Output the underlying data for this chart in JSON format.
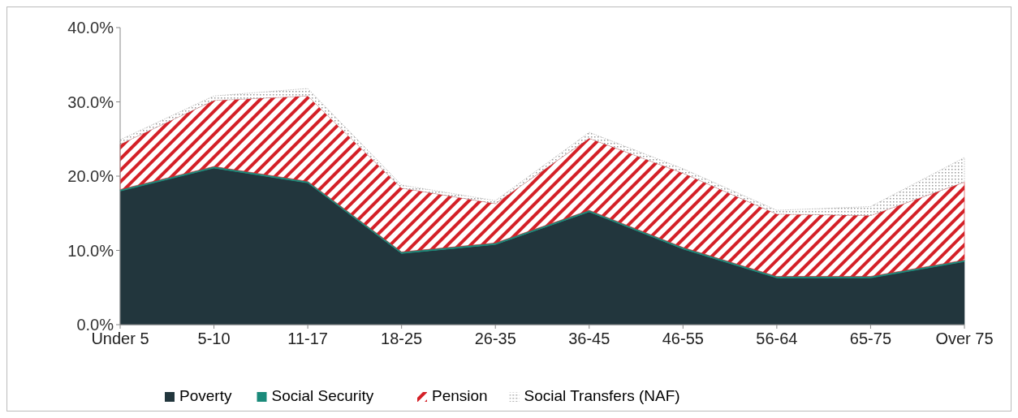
{
  "chart_data": {
    "type": "area",
    "stacked": true,
    "categories": [
      "Under 5",
      "5-10",
      "11-17",
      "18-25",
      "26-35",
      "36-45",
      "46-55",
      "56-64",
      "65-75",
      "Over 75"
    ],
    "series": [
      {
        "name": "Poverty",
        "color": "#22363d",
        "values": [
          18.0,
          21.1,
          19.1,
          9.6,
          10.8,
          15.2,
          10.2,
          6.3,
          6.3,
          8.5
        ]
      },
      {
        "name": "Social Security",
        "color": "#1a8a7a",
        "values": [
          0.2,
          0.2,
          0.2,
          0.2,
          0.2,
          0.2,
          0.2,
          0.2,
          0.2,
          0.2
        ]
      },
      {
        "name": "Pension",
        "color": "#d42027",
        "values": [
          6.1,
          8.9,
          11.5,
          8.6,
          5.3,
          9.7,
          10.0,
          8.4,
          8.2,
          10.5
        ]
      },
      {
        "name": "Social Transfers (NAF)",
        "color": "#9a9a9a",
        "values": [
          0.6,
          0.6,
          1.0,
          0.4,
          0.4,
          0.8,
          0.6,
          0.5,
          1.2,
          3.3
        ]
      }
    ],
    "ylim": [
      0,
      40
    ],
    "yticks": [
      {
        "value": 0,
        "label": "0.0%"
      },
      {
        "value": 10,
        "label": "10.0%"
      },
      {
        "value": 20,
        "label": "20.0%"
      },
      {
        "value": 30,
        "label": "30.0%"
      },
      {
        "value": 40,
        "label": "40.0%"
      }
    ],
    "grid": false,
    "legend": "bottom"
  }
}
